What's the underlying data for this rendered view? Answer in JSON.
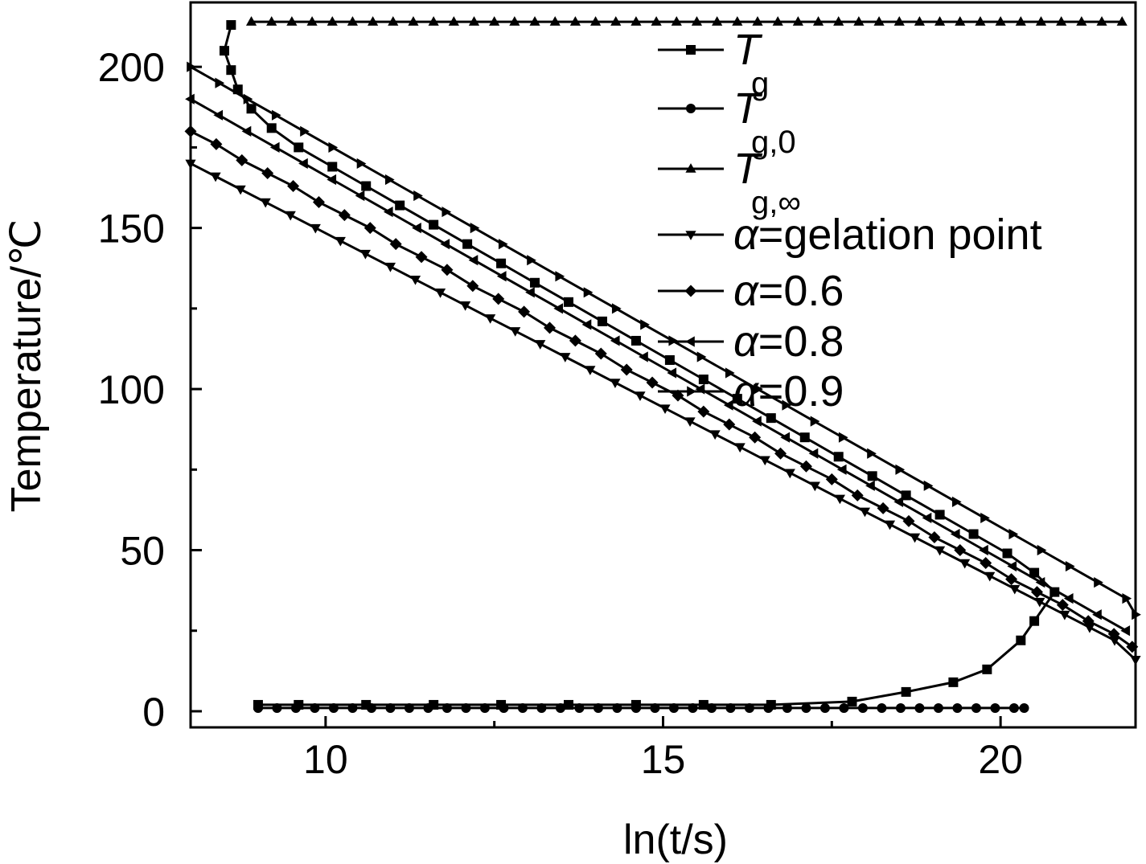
{
  "chart_data": {
    "type": "line",
    "xlabel": "ln(t/s)",
    "ylabel": "Temperature/℃",
    "xlim": [
      8,
      22
    ],
    "ylim": [
      -5,
      220
    ],
    "xticks": [
      10,
      15,
      20
    ],
    "yticks": [
      0,
      50,
      100,
      150,
      200
    ],
    "legend_position": "top-right",
    "series": [
      {
        "name": "Tg",
        "label_main": "T",
        "label_sub": "g",
        "marker": "square",
        "points": [
          [
            8.6,
            213
          ],
          [
            8.5,
            205
          ],
          [
            8.6,
            199
          ],
          [
            8.7,
            193
          ],
          [
            8.9,
            187
          ],
          [
            9.2,
            181
          ],
          [
            9.6,
            175
          ],
          [
            10.1,
            169
          ],
          [
            10.6,
            163
          ],
          [
            11.1,
            157
          ],
          [
            11.6,
            151
          ],
          [
            12.1,
            145
          ],
          [
            12.6,
            139
          ],
          [
            13.1,
            133
          ],
          [
            13.6,
            127
          ],
          [
            14.1,
            121
          ],
          [
            14.6,
            115
          ],
          [
            15.1,
            109
          ],
          [
            15.6,
            103
          ],
          [
            16.1,
            97
          ],
          [
            16.6,
            91
          ],
          [
            17.1,
            85
          ],
          [
            17.6,
            79
          ],
          [
            18.1,
            73
          ],
          [
            18.6,
            67
          ],
          [
            19.1,
            61
          ],
          [
            19.6,
            55
          ],
          [
            20.1,
            49
          ],
          [
            20.5,
            43
          ],
          [
            20.8,
            37
          ],
          [
            20.5,
            28
          ],
          [
            20.3,
            22
          ],
          [
            19.8,
            13
          ],
          [
            19.3,
            9
          ],
          [
            18.6,
            6
          ],
          [
            17.8,
            3
          ],
          [
            16.6,
            2
          ],
          [
            15.6,
            2
          ],
          [
            14.6,
            2
          ],
          [
            13.6,
            2
          ],
          [
            12.6,
            2
          ],
          [
            11.6,
            2
          ],
          [
            10.6,
            2
          ],
          [
            9.6,
            2
          ],
          [
            9.0,
            2
          ]
        ]
      },
      {
        "name": "Tg,0",
        "label_main": "T",
        "label_sub": "g,0",
        "marker": "circle",
        "points": [
          [
            9.0,
            1
          ],
          [
            9.28,
            1
          ],
          [
            9.56,
            1
          ],
          [
            9.84,
            1
          ],
          [
            10.12,
            1
          ],
          [
            10.4,
            1
          ],
          [
            10.68,
            1
          ],
          [
            10.96,
            1
          ],
          [
            11.24,
            1
          ],
          [
            11.52,
            1
          ],
          [
            11.8,
            1
          ],
          [
            12.08,
            1
          ],
          [
            12.36,
            1
          ],
          [
            12.64,
            1
          ],
          [
            12.92,
            1
          ],
          [
            13.2,
            1
          ],
          [
            13.48,
            1
          ],
          [
            13.76,
            1
          ],
          [
            14.04,
            1
          ],
          [
            14.32,
            1
          ],
          [
            14.6,
            1
          ],
          [
            14.88,
            1
          ],
          [
            15.16,
            1
          ],
          [
            15.44,
            1
          ],
          [
            15.72,
            1
          ],
          [
            16.0,
            1
          ],
          [
            16.28,
            1
          ],
          [
            16.56,
            1
          ],
          [
            16.84,
            1
          ],
          [
            17.12,
            1
          ],
          [
            17.4,
            1
          ],
          [
            17.68,
            1
          ],
          [
            17.96,
            1
          ],
          [
            18.24,
            1
          ],
          [
            18.52,
            1
          ],
          [
            18.8,
            1
          ],
          [
            19.08,
            1
          ],
          [
            19.36,
            1
          ],
          [
            19.64,
            1
          ],
          [
            19.92,
            1
          ],
          [
            20.2,
            1
          ],
          [
            20.35,
            1
          ]
        ]
      },
      {
        "name": "Tg,∞",
        "label_main": "T",
        "label_sub": "g,∞",
        "marker": "triangle-up",
        "points": [
          [
            8.9,
            214
          ],
          [
            9.2,
            214
          ],
          [
            9.5,
            214
          ],
          [
            9.8,
            214
          ],
          [
            10.1,
            214
          ],
          [
            10.4,
            214
          ],
          [
            10.7,
            214
          ],
          [
            11.0,
            214
          ],
          [
            11.3,
            214
          ],
          [
            11.6,
            214
          ],
          [
            11.9,
            214
          ],
          [
            12.2,
            214
          ],
          [
            12.5,
            214
          ],
          [
            12.8,
            214
          ],
          [
            13.1,
            214
          ],
          [
            13.4,
            214
          ],
          [
            13.7,
            214
          ],
          [
            14.0,
            214
          ],
          [
            14.3,
            214
          ],
          [
            14.6,
            214
          ],
          [
            14.9,
            214
          ],
          [
            15.2,
            214
          ],
          [
            15.5,
            214
          ],
          [
            15.8,
            214
          ],
          [
            16.1,
            214
          ],
          [
            16.4,
            214
          ],
          [
            16.7,
            214
          ],
          [
            17.0,
            214
          ],
          [
            17.3,
            214
          ],
          [
            17.6,
            214
          ],
          [
            17.9,
            214
          ],
          [
            18.2,
            214
          ],
          [
            18.5,
            214
          ],
          [
            18.8,
            214
          ],
          [
            19.1,
            214
          ],
          [
            19.4,
            214
          ],
          [
            19.7,
            214
          ],
          [
            20.0,
            214
          ],
          [
            20.3,
            214
          ],
          [
            20.6,
            214
          ],
          [
            20.9,
            214
          ],
          [
            21.2,
            214
          ],
          [
            21.5,
            214
          ],
          [
            21.8,
            214
          ]
        ]
      },
      {
        "name": "α=gelation point",
        "label_main": "α=gelation point",
        "label_sub": "",
        "marker": "triangle-down",
        "points": [
          [
            8.0,
            170
          ],
          [
            8.37,
            166
          ],
          [
            8.74,
            162
          ],
          [
            9.11,
            158
          ],
          [
            9.48,
            154
          ],
          [
            9.85,
            150
          ],
          [
            10.22,
            146
          ],
          [
            10.59,
            142
          ],
          [
            10.96,
            138
          ],
          [
            11.33,
            134
          ],
          [
            11.7,
            130
          ],
          [
            12.07,
            126
          ],
          [
            12.44,
            122
          ],
          [
            12.81,
            118
          ],
          [
            13.18,
            114
          ],
          [
            13.55,
            110
          ],
          [
            13.92,
            106
          ],
          [
            14.29,
            102
          ],
          [
            14.66,
            98
          ],
          [
            15.03,
            94
          ],
          [
            15.4,
            90
          ],
          [
            15.77,
            86
          ],
          [
            16.14,
            82
          ],
          [
            16.51,
            78
          ],
          [
            16.88,
            74
          ],
          [
            17.25,
            70
          ],
          [
            17.62,
            66
          ],
          [
            17.99,
            62
          ],
          [
            18.36,
            58
          ],
          [
            18.73,
            54
          ],
          [
            19.1,
            50
          ],
          [
            19.47,
            46
          ],
          [
            19.84,
            42
          ],
          [
            20.21,
            38
          ],
          [
            20.58,
            34
          ],
          [
            20.95,
            30
          ],
          [
            21.32,
            26
          ],
          [
            21.69,
            22
          ],
          [
            22.0,
            16
          ]
        ]
      },
      {
        "name": "α=0.6",
        "label_main": "α=0.6",
        "label_sub": "",
        "marker": "diamond",
        "points": [
          [
            8.0,
            180
          ],
          [
            8.38,
            176
          ],
          [
            8.76,
            171
          ],
          [
            9.14,
            167
          ],
          [
            9.52,
            163
          ],
          [
            9.9,
            158
          ],
          [
            10.28,
            154
          ],
          [
            10.66,
            150
          ],
          [
            11.04,
            145
          ],
          [
            11.42,
            141
          ],
          [
            11.8,
            137
          ],
          [
            12.18,
            132
          ],
          [
            12.56,
            128
          ],
          [
            12.94,
            124
          ],
          [
            13.32,
            119
          ],
          [
            13.7,
            115
          ],
          [
            14.08,
            111
          ],
          [
            14.46,
            106
          ],
          [
            14.84,
            102
          ],
          [
            15.22,
            98
          ],
          [
            15.6,
            93
          ],
          [
            15.98,
            89
          ],
          [
            16.36,
            85
          ],
          [
            16.74,
            80
          ],
          [
            17.12,
            76
          ],
          [
            17.5,
            72
          ],
          [
            17.88,
            67
          ],
          [
            18.26,
            63
          ],
          [
            18.64,
            59
          ],
          [
            19.02,
            54
          ],
          [
            19.4,
            50
          ],
          [
            19.78,
            46
          ],
          [
            20.16,
            41
          ],
          [
            20.54,
            37
          ],
          [
            20.92,
            33
          ],
          [
            21.3,
            28
          ],
          [
            21.68,
            24
          ],
          [
            21.95,
            20
          ]
        ]
      },
      {
        "name": "α=0.8",
        "label_main": "α=0.8",
        "label_sub": "",
        "marker": "triangle-left",
        "points": [
          [
            8.0,
            190
          ],
          [
            8.42,
            185
          ],
          [
            8.84,
            180
          ],
          [
            9.26,
            175
          ],
          [
            9.68,
            170
          ],
          [
            10.1,
            165
          ],
          [
            10.52,
            160
          ],
          [
            10.94,
            155
          ],
          [
            11.36,
            150
          ],
          [
            11.78,
            145
          ],
          [
            12.2,
            140
          ],
          [
            12.62,
            135
          ],
          [
            13.04,
            130
          ],
          [
            13.46,
            125
          ],
          [
            13.88,
            120
          ],
          [
            14.3,
            115
          ],
          [
            14.72,
            110
          ],
          [
            15.14,
            105
          ],
          [
            15.56,
            100
          ],
          [
            15.98,
            95
          ],
          [
            16.4,
            90
          ],
          [
            16.82,
            85
          ],
          [
            17.24,
            80
          ],
          [
            17.66,
            75
          ],
          [
            18.08,
            70
          ],
          [
            18.5,
            65
          ],
          [
            18.92,
            60
          ],
          [
            19.34,
            55
          ],
          [
            19.76,
            50
          ],
          [
            20.18,
            45
          ],
          [
            20.6,
            40
          ],
          [
            21.02,
            35
          ],
          [
            21.44,
            30
          ],
          [
            21.86,
            25
          ]
        ]
      },
      {
        "name": "α=0.9",
        "label_main": "α=0.9",
        "label_sub": "",
        "marker": "triangle-right",
        "points": [
          [
            8.0,
            200
          ],
          [
            8.42,
            195
          ],
          [
            8.84,
            190
          ],
          [
            9.26,
            185
          ],
          [
            9.68,
            180
          ],
          [
            10.1,
            175
          ],
          [
            10.52,
            170
          ],
          [
            10.94,
            165
          ],
          [
            11.36,
            160
          ],
          [
            11.78,
            155
          ],
          [
            12.2,
            150
          ],
          [
            12.62,
            145
          ],
          [
            13.04,
            140
          ],
          [
            13.46,
            135
          ],
          [
            13.88,
            130
          ],
          [
            14.3,
            125
          ],
          [
            14.72,
            120
          ],
          [
            15.14,
            115
          ],
          [
            15.56,
            110
          ],
          [
            15.98,
            105
          ],
          [
            16.4,
            100
          ],
          [
            16.82,
            95
          ],
          [
            17.24,
            90
          ],
          [
            17.66,
            85
          ],
          [
            18.08,
            80
          ],
          [
            18.5,
            75
          ],
          [
            18.92,
            70
          ],
          [
            19.34,
            65
          ],
          [
            19.76,
            60
          ],
          [
            20.18,
            55
          ],
          [
            20.6,
            50
          ],
          [
            21.02,
            45
          ],
          [
            21.44,
            40
          ],
          [
            21.86,
            35
          ],
          [
            22.0,
            30
          ]
        ]
      }
    ]
  }
}
